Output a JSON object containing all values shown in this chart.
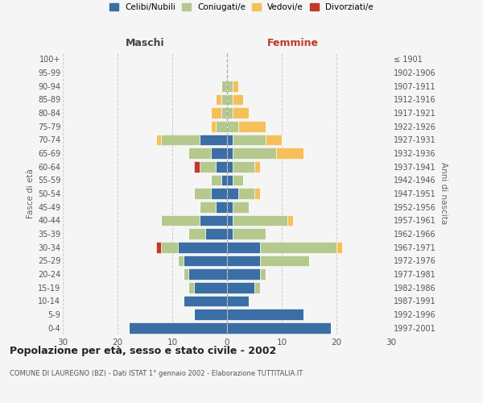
{
  "age_groups": [
    "0-4",
    "5-9",
    "10-14",
    "15-19",
    "20-24",
    "25-29",
    "30-34",
    "35-39",
    "40-44",
    "45-49",
    "50-54",
    "55-59",
    "60-64",
    "65-69",
    "70-74",
    "75-79",
    "80-84",
    "85-89",
    "90-94",
    "95-99",
    "100+"
  ],
  "birth_years": [
    "1997-2001",
    "1992-1996",
    "1987-1991",
    "1982-1986",
    "1977-1981",
    "1972-1976",
    "1967-1971",
    "1962-1966",
    "1957-1961",
    "1952-1956",
    "1947-1951",
    "1942-1946",
    "1937-1941",
    "1932-1936",
    "1927-1931",
    "1922-1926",
    "1917-1921",
    "1912-1916",
    "1907-1911",
    "1902-1906",
    "≤ 1901"
  ],
  "maschi": {
    "celibi": [
      18,
      6,
      8,
      6,
      7,
      8,
      9,
      4,
      5,
      2,
      3,
      1,
      2,
      3,
      5,
      0,
      0,
      0,
      0,
      0,
      0
    ],
    "coniugati": [
      0,
      0,
      0,
      1,
      1,
      1,
      3,
      3,
      7,
      3,
      3,
      2,
      3,
      4,
      7,
      2,
      1,
      1,
      1,
      0,
      0
    ],
    "vedovi": [
      0,
      0,
      0,
      0,
      0,
      0,
      0,
      0,
      0,
      0,
      0,
      0,
      0,
      0,
      1,
      1,
      2,
      1,
      0,
      0,
      0
    ],
    "divorziati": [
      0,
      0,
      0,
      0,
      0,
      0,
      1,
      0,
      0,
      0,
      0,
      0,
      1,
      0,
      0,
      0,
      0,
      0,
      0,
      0,
      0
    ]
  },
  "femmine": {
    "nubili": [
      19,
      14,
      4,
      5,
      6,
      6,
      6,
      1,
      1,
      1,
      2,
      1,
      1,
      1,
      1,
      0,
      0,
      0,
      0,
      0,
      0
    ],
    "coniugate": [
      0,
      0,
      0,
      1,
      1,
      9,
      14,
      6,
      10,
      3,
      3,
      2,
      4,
      8,
      6,
      2,
      1,
      1,
      1,
      0,
      0
    ],
    "vedove": [
      0,
      0,
      0,
      0,
      0,
      0,
      1,
      0,
      1,
      0,
      1,
      0,
      1,
      5,
      3,
      5,
      3,
      2,
      1,
      0,
      0
    ],
    "divorziate": [
      0,
      0,
      0,
      0,
      0,
      0,
      0,
      0,
      0,
      0,
      0,
      0,
      0,
      0,
      0,
      0,
      0,
      0,
      0,
      0,
      0
    ]
  },
  "colors": {
    "celibi_nubili": "#3A6EA5",
    "coniugati": "#B5C98E",
    "vedovi": "#F5C05A",
    "divorziati": "#C0392B"
  },
  "xlim": 30,
  "title": "Popolazione per età, sesso e stato civile - 2002",
  "subtitle": "COMUNE DI LAUREGNO (BZ) - Dati ISTAT 1° gennaio 2002 - Elaborazione TUTTITALIA.IT",
  "ylabel_left": "Fasce di età",
  "ylabel_right": "Anni di nascita",
  "xlabel_left": "Maschi",
  "xlabel_right": "Femmine",
  "legend_labels": [
    "Celibi/Nubili",
    "Coniugati/e",
    "Vedovi/e",
    "Divorziati/e"
  ],
  "background_color": "#f5f5f5",
  "grid_color": "#cccccc"
}
